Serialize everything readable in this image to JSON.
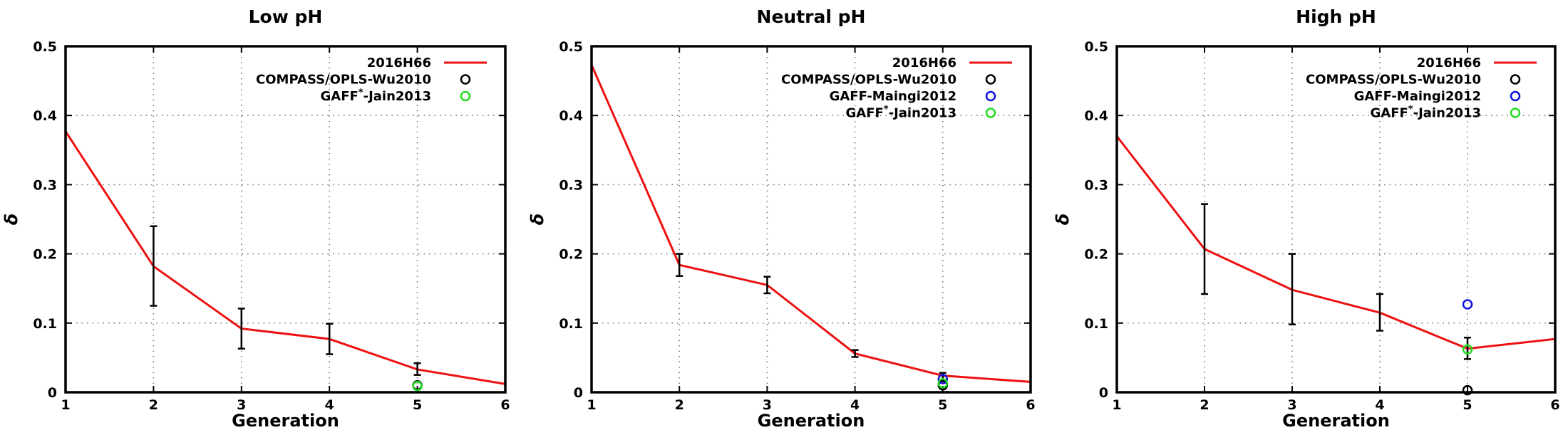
{
  "chart_data": [
    {
      "type": "line",
      "title": "Low pH",
      "xlabel": "Generation",
      "ylabel": "δ",
      "xlim": [
        1,
        6
      ],
      "ylim": [
        0,
        0.5
      ],
      "xticks": [
        1,
        2,
        3,
        4,
        5,
        6
      ],
      "yticks": [
        0,
        0.1,
        0.2,
        0.3,
        0.4,
        0.5
      ],
      "ytick_labels": [
        "0",
        "0.1",
        "0.2",
        "0.3",
        "0.4",
        "0.5"
      ],
      "grid": true,
      "legend_position": "top-right",
      "series": [
        {
          "name": "2016H66",
          "kind": "line",
          "color": "#ee1111",
          "x": [
            1,
            2,
            3,
            4,
            5,
            6
          ],
          "y": [
            0.377,
            0.182,
            0.092,
            0.077,
            0.033,
            0.012
          ],
          "error_points": [
            {
              "x": 2,
              "low": 0.125,
              "high": 0.24
            },
            {
              "x": 3,
              "low": 0.063,
              "high": 0.121
            },
            {
              "x": 4,
              "low": 0.055,
              "high": 0.099
            },
            {
              "x": 5,
              "low": 0.025,
              "high": 0.042
            }
          ]
        },
        {
          "name": "COMPASS/OPLS-Wu2010",
          "kind": "marker",
          "color": "#000000",
          "x": [
            5
          ],
          "y": [
            0.01
          ]
        },
        {
          "name": "GAFF*-Jain2013",
          "name_base": "GAFF",
          "name_sup": "*",
          "name_tail": "-Jain2013",
          "kind": "marker",
          "color": "#22dd22",
          "x": [
            5
          ],
          "y": [
            0.009
          ]
        }
      ]
    },
    {
      "type": "line",
      "title": "Neutral pH",
      "xlabel": "Generation",
      "ylabel": "δ",
      "xlim": [
        1,
        6
      ],
      "ylim": [
        0,
        0.5
      ],
      "xticks": [
        1,
        2,
        3,
        4,
        5,
        6
      ],
      "yticks": [
        0,
        0.1,
        0.2,
        0.3,
        0.4,
        0.5
      ],
      "ytick_labels": [
        "0",
        "0.1",
        "0.2",
        "0.3",
        "0.4",
        "0.5"
      ],
      "grid": true,
      "legend_position": "top-right",
      "series": [
        {
          "name": "2016H66",
          "kind": "line",
          "color": "#ee1111",
          "x": [
            1,
            2,
            3,
            4,
            5,
            6
          ],
          "y": [
            0.473,
            0.184,
            0.155,
            0.056,
            0.024,
            0.015
          ],
          "error_points": [
            {
              "x": 2,
              "low": 0.168,
              "high": 0.2
            },
            {
              "x": 3,
              "low": 0.143,
              "high": 0.167
            },
            {
              "x": 4,
              "low": 0.051,
              "high": 0.061
            },
            {
              "x": 5,
              "low": 0.016,
              "high": 0.028
            }
          ]
        },
        {
          "name": "COMPASS/OPLS-Wu2010",
          "kind": "marker",
          "color": "#000000",
          "x": [
            5
          ],
          "y": [
            0.01
          ]
        },
        {
          "name": "GAFF-Maingi2012",
          "kind": "marker",
          "color": "#1111dd",
          "x": [
            5
          ],
          "y": [
            0.019
          ]
        },
        {
          "name": "GAFF*-Jain2013",
          "name_base": "GAFF",
          "name_sup": "*",
          "name_tail": "-Jain2013",
          "kind": "marker",
          "color": "#22dd22",
          "x": [
            5
          ],
          "y": [
            0.013
          ]
        }
      ]
    },
    {
      "type": "line",
      "title": "High pH",
      "xlabel": "Generation",
      "ylabel": "δ",
      "xlim": [
        1,
        6
      ],
      "ylim": [
        0,
        0.5
      ],
      "xticks": [
        1,
        2,
        3,
        4,
        5,
        6
      ],
      "yticks": [
        0,
        0.1,
        0.2,
        0.3,
        0.4,
        0.5
      ],
      "ytick_labels": [
        "0",
        "0.1",
        "0.2",
        "0.3",
        "0.4",
        "0.5"
      ],
      "grid": true,
      "legend_position": "top-right",
      "series": [
        {
          "name": "2016H66",
          "kind": "line",
          "color": "#ee1111",
          "x": [
            1,
            2,
            3,
            4,
            5,
            6
          ],
          "y": [
            0.37,
            0.207,
            0.148,
            0.115,
            0.063,
            0.077
          ],
          "error_points": [
            {
              "x": 2,
              "low": 0.142,
              "high": 0.272
            },
            {
              "x": 3,
              "low": 0.098,
              "high": 0.2
            },
            {
              "x": 4,
              "low": 0.089,
              "high": 0.142
            },
            {
              "x": 5,
              "low": 0.048,
              "high": 0.079
            }
          ]
        },
        {
          "name": "COMPASS/OPLS-Wu2010",
          "kind": "marker",
          "color": "#000000",
          "x": [
            5
          ],
          "y": [
            0.003
          ]
        },
        {
          "name": "GAFF-Maingi2012",
          "kind": "marker",
          "color": "#1111dd",
          "x": [
            5
          ],
          "y": [
            0.127
          ]
        },
        {
          "name": "GAFF*-Jain2013",
          "name_base": "GAFF",
          "name_sup": "*",
          "name_tail": "-Jain2013",
          "kind": "marker",
          "color": "#22dd22",
          "x": [
            5
          ],
          "y": [
            0.062
          ]
        }
      ]
    }
  ]
}
